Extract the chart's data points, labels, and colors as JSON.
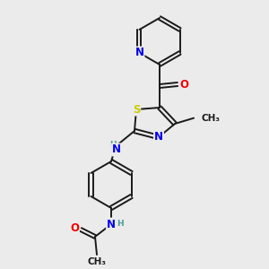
{
  "background_color": "#ebebeb",
  "bond_color": "#1a1a1a",
  "atom_colors": {
    "N": "#0000ee",
    "O": "#ee0000",
    "S": "#cccc00",
    "C": "#1a1a1a",
    "H": "#4a9a9a"
  },
  "font_size_atom": 8.5,
  "font_size_small": 7.5
}
